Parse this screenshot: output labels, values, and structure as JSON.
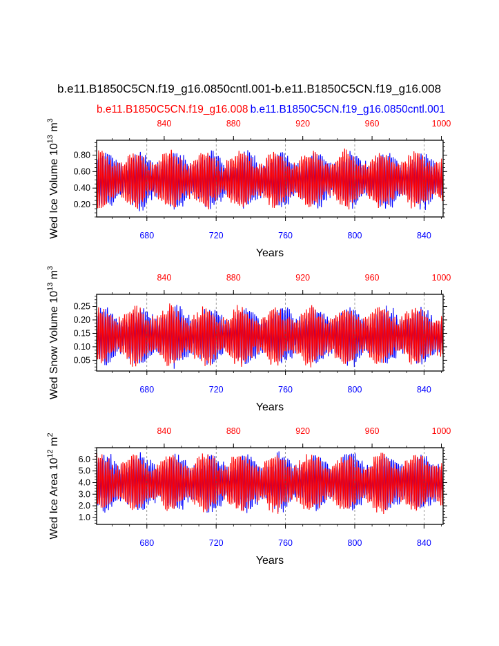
{
  "title": "b.e11.B1850C5CN.f19_g16.0850cntl.001-b.e11.B1850C5CN.f19_g16.008",
  "subtitle_left": "b.e11.B1850C5CN.f19_g16.008",
  "subtitle_right": "b.e11.B1850C5CN.f19_g16.0850cntl.001",
  "colors": {
    "series_blue": "#0000ff",
    "series_red": "#ff0000",
    "axis": "#000000"
  },
  "chart_data": [
    {
      "type": "line",
      "ylabel": "Wed Ice Volume 10",
      "ylabel_exp": "13",
      "ylabel_unit": "m",
      "ylabel_unit_exp": "3",
      "xlabel": "Years",
      "ylim": [
        0.05,
        0.98
      ],
      "yticks": [
        0.2,
        0.4,
        0.6,
        0.8
      ],
      "ytick_labels": [
        "0.20",
        "0.40",
        "0.60",
        "0.80"
      ],
      "mean": 0.5,
      "amplitude": 0.3,
      "bottom_xlim": [
        651,
        851
      ],
      "bottom_xticks": [
        "680",
        "720",
        "760",
        "800",
        "840"
      ],
      "top_xlim": [
        801,
        1001
      ],
      "top_xticks": [
        "840",
        "880",
        "920",
        "960",
        "1000"
      ],
      "series": [
        {
          "name": "b.e11.B1850C5CN.f19_g16.0850cntl.001",
          "color": "#0000ff",
          "x_start": 651,
          "x_end": 851
        },
        {
          "name": "b.e11.B1850C5CN.f19_g16.008",
          "color": "#ff0000",
          "x_start": 801,
          "x_end": 1001
        }
      ]
    },
    {
      "type": "line",
      "ylabel": "Wed Snow Volume 10",
      "ylabel_exp": "13",
      "ylabel_unit": "m",
      "ylabel_unit_exp": "3",
      "xlabel": "Years",
      "ylim": [
        0.01,
        0.295
      ],
      "yticks": [
        0.05,
        0.1,
        0.15,
        0.2,
        0.25
      ],
      "ytick_labels": [
        "0.05",
        "0.10",
        "0.15",
        "0.20",
        "0.25"
      ],
      "mean": 0.14,
      "amplitude": 0.095,
      "bottom_xlim": [
        651,
        851
      ],
      "bottom_xticks": [
        "680",
        "720",
        "760",
        "800",
        "840"
      ],
      "top_xlim": [
        801,
        1001
      ],
      "top_xticks": [
        "840",
        "880",
        "920",
        "960",
        "1000"
      ],
      "series": [
        {
          "name": "b.e11.B1850C5CN.f19_g16.0850cntl.001",
          "color": "#0000ff",
          "x_start": 651,
          "x_end": 851
        },
        {
          "name": "b.e11.B1850C5CN.f19_g16.008",
          "color": "#ff0000",
          "x_start": 801,
          "x_end": 1001
        }
      ]
    },
    {
      "type": "line",
      "ylabel": "Wed Ice Area 10",
      "ylabel_exp": "12",
      "ylabel_unit": "m",
      "ylabel_unit_exp": "2",
      "xlabel": "Years",
      "ylim": [
        0.4,
        7.0
      ],
      "yticks": [
        1,
        2,
        3,
        4,
        5,
        6
      ],
      "ytick_labels": [
        "1.0",
        "2.0",
        "3.0",
        "4.0",
        "5.0",
        "6.0"
      ],
      "mean": 4.0,
      "amplitude": 2.2,
      "bottom_xlim": [
        651,
        851
      ],
      "bottom_xticks": [
        "680",
        "720",
        "760",
        "800",
        "840"
      ],
      "top_xlim": [
        801,
        1001
      ],
      "top_xticks": [
        "840",
        "880",
        "920",
        "960",
        "1000"
      ],
      "series": [
        {
          "name": "b.e11.B1850C5CN.f19_g16.0850cntl.001",
          "color": "#0000ff",
          "x_start": 651,
          "x_end": 851
        },
        {
          "name": "b.e11.B1850C5CN.f19_g16.008",
          "color": "#ff0000",
          "x_start": 801,
          "x_end": 1001
        }
      ]
    }
  ]
}
